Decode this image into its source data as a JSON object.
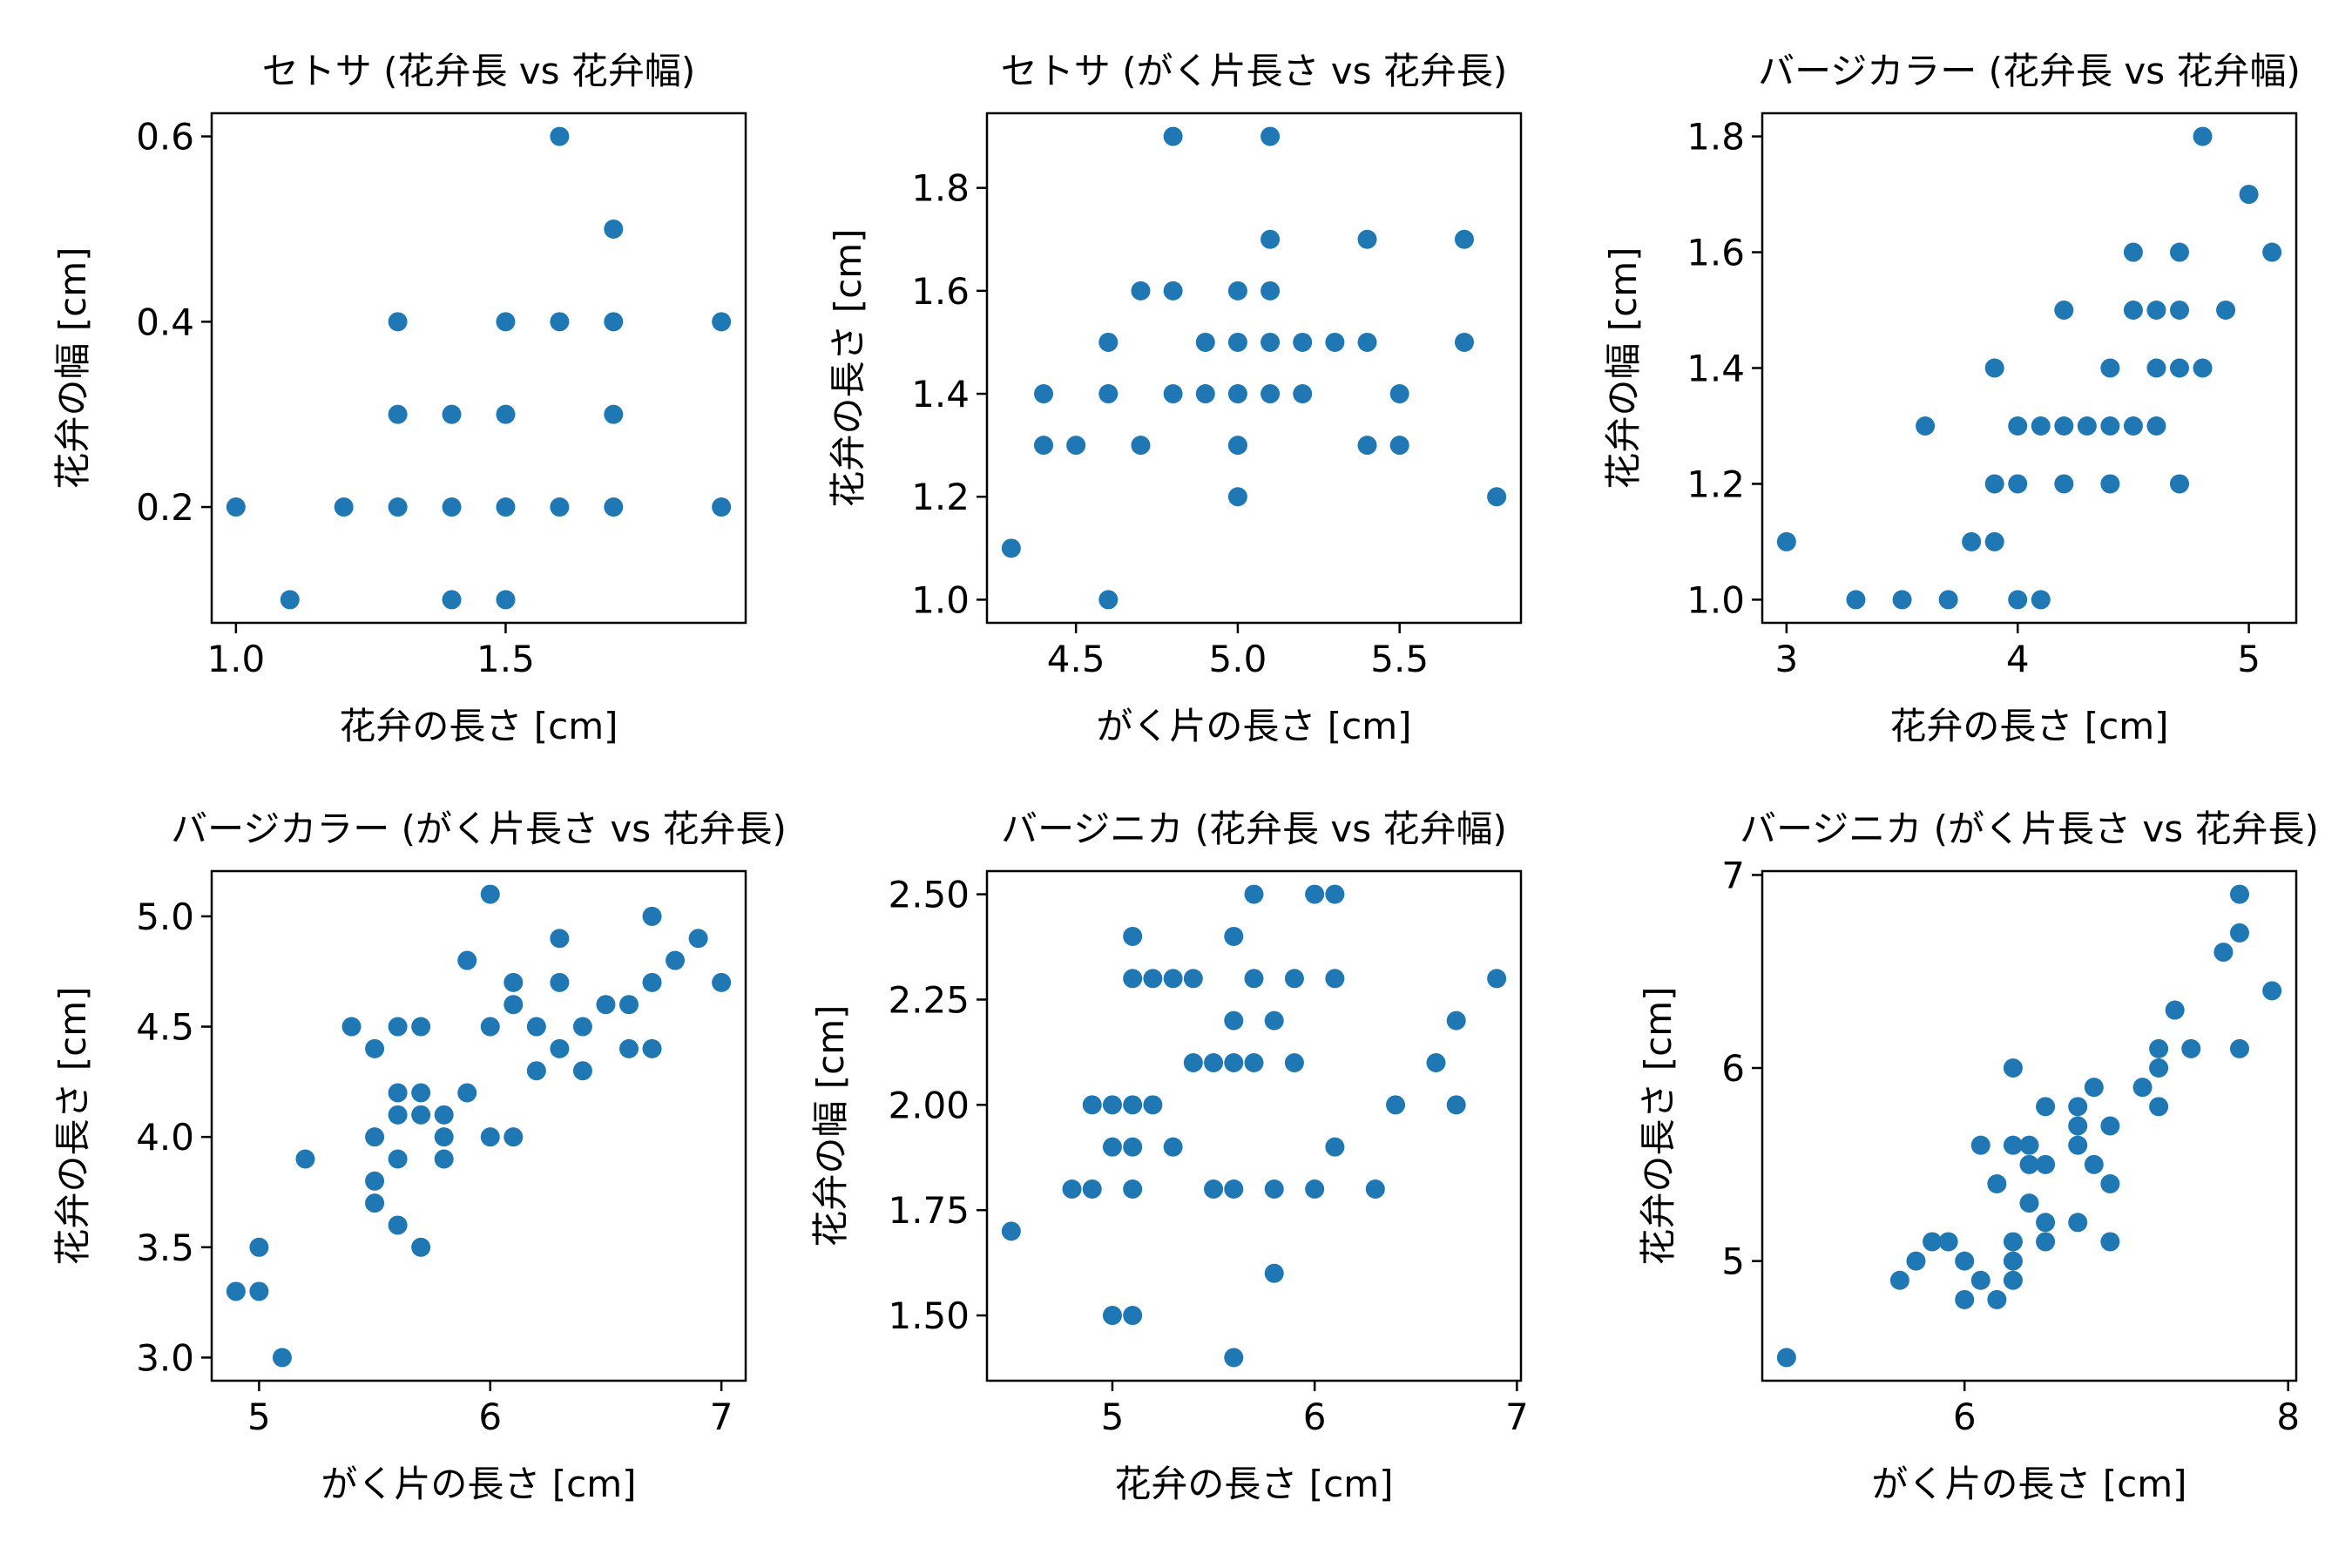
{
  "chart_data": [
    {
      "type": "scatter",
      "title": "セトサ (花弁長 vs 花弁幅)",
      "xlabel": "花弁の長さ [cm]",
      "ylabel": "花弁の幅 [cm]",
      "xlim": [
        0.955,
        1.945
      ],
      "ylim": [
        0.075,
        0.625
      ],
      "xticks": [
        {
          "v": 1.0,
          "label": "1.0"
        },
        {
          "v": 1.5,
          "label": "1.5"
        }
      ],
      "yticks": [
        {
          "v": 0.2,
          "label": "0.2"
        },
        {
          "v": 0.4,
          "label": "0.4"
        },
        {
          "v": 0.6,
          "label": "0.6"
        }
      ],
      "color": "#1f77b4",
      "points": [
        [
          1.0,
          0.2
        ],
        [
          1.1,
          0.1
        ],
        [
          1.2,
          0.2
        ],
        [
          1.3,
          0.2
        ],
        [
          1.3,
          0.3
        ],
        [
          1.3,
          0.4
        ],
        [
          1.4,
          0.1
        ],
        [
          1.4,
          0.2
        ],
        [
          1.4,
          0.3
        ],
        [
          1.5,
          0.1
        ],
        [
          1.5,
          0.2
        ],
        [
          1.5,
          0.3
        ],
        [
          1.5,
          0.4
        ],
        [
          1.6,
          0.2
        ],
        [
          1.6,
          0.4
        ],
        [
          1.6,
          0.6
        ],
        [
          1.7,
          0.2
        ],
        [
          1.7,
          0.3
        ],
        [
          1.7,
          0.4
        ],
        [
          1.7,
          0.5
        ],
        [
          1.9,
          0.2
        ],
        [
          1.9,
          0.4
        ]
      ]
    },
    {
      "type": "scatter",
      "title": "セトサ (がく片長さ vs 花弁長)",
      "xlabel": "がく片の長さ [cm]",
      "ylabel": "花弁の長さ [cm]",
      "xlim": [
        4.225,
        5.875
      ],
      "ylim": [
        0.955,
        1.945
      ],
      "xticks": [
        {
          "v": 4.5,
          "label": "4.5"
        },
        {
          "v": 5.0,
          "label": "5.0"
        },
        {
          "v": 5.5,
          "label": "5.5"
        }
      ],
      "yticks": [
        {
          "v": 1.0,
          "label": "1.0"
        },
        {
          "v": 1.2,
          "label": "1.2"
        },
        {
          "v": 1.4,
          "label": "1.4"
        },
        {
          "v": 1.6,
          "label": "1.6"
        },
        {
          "v": 1.8,
          "label": "1.8"
        }
      ],
      "color": "#1f77b4",
      "points": [
        [
          4.3,
          1.1
        ],
        [
          4.4,
          1.3
        ],
        [
          4.4,
          1.4
        ],
        [
          4.5,
          1.3
        ],
        [
          4.6,
          1.0
        ],
        [
          4.6,
          1.4
        ],
        [
          4.6,
          1.5
        ],
        [
          4.7,
          1.3
        ],
        [
          4.7,
          1.6
        ],
        [
          4.8,
          1.4
        ],
        [
          4.8,
          1.6
        ],
        [
          4.8,
          1.9
        ],
        [
          4.9,
          1.4
        ],
        [
          4.9,
          1.5
        ],
        [
          5.0,
          1.2
        ],
        [
          5.0,
          1.3
        ],
        [
          5.0,
          1.4
        ],
        [
          5.0,
          1.5
        ],
        [
          5.0,
          1.6
        ],
        [
          5.1,
          1.4
        ],
        [
          5.1,
          1.5
        ],
        [
          5.1,
          1.6
        ],
        [
          5.1,
          1.7
        ],
        [
          5.1,
          1.9
        ],
        [
          5.2,
          1.4
        ],
        [
          5.2,
          1.5
        ],
        [
          5.3,
          1.5
        ],
        [
          5.4,
          1.3
        ],
        [
          5.4,
          1.5
        ],
        [
          5.4,
          1.7
        ],
        [
          5.5,
          1.3
        ],
        [
          5.5,
          1.4
        ],
        [
          5.7,
          1.5
        ],
        [
          5.7,
          1.7
        ],
        [
          5.8,
          1.2
        ]
      ]
    },
    {
      "type": "scatter",
      "title": "バージカラー (花弁長 vs 花弁幅)",
      "xlabel": "花弁の長さ [cm]",
      "ylabel": "花弁の幅 [cm]",
      "xlim": [
        2.895,
        5.205
      ],
      "ylim": [
        0.96,
        1.84
      ],
      "xticks": [
        {
          "v": 3,
          "label": "3"
        },
        {
          "v": 4,
          "label": "4"
        },
        {
          "v": 5,
          "label": "5"
        }
      ],
      "yticks": [
        {
          "v": 1.0,
          "label": "1.0"
        },
        {
          "v": 1.2,
          "label": "1.2"
        },
        {
          "v": 1.4,
          "label": "1.4"
        },
        {
          "v": 1.6,
          "label": "1.6"
        },
        {
          "v": 1.8,
          "label": "1.8"
        }
      ],
      "color": "#1f77b4",
      "points": [
        [
          3.0,
          1.1
        ],
        [
          3.3,
          1.0
        ],
        [
          3.5,
          1.0
        ],
        [
          3.6,
          1.3
        ],
        [
          3.7,
          1.0
        ],
        [
          3.8,
          1.1
        ],
        [
          3.9,
          1.1
        ],
        [
          3.9,
          1.2
        ],
        [
          3.9,
          1.4
        ],
        [
          4.0,
          1.0
        ],
        [
          4.0,
          1.2
        ],
        [
          4.0,
          1.3
        ],
        [
          4.1,
          1.0
        ],
        [
          4.1,
          1.3
        ],
        [
          4.2,
          1.2
        ],
        [
          4.2,
          1.3
        ],
        [
          4.2,
          1.5
        ],
        [
          4.3,
          1.3
        ],
        [
          4.4,
          1.2
        ],
        [
          4.4,
          1.3
        ],
        [
          4.4,
          1.4
        ],
        [
          4.5,
          1.3
        ],
        [
          4.5,
          1.5
        ],
        [
          4.5,
          1.6
        ],
        [
          4.6,
          1.3
        ],
        [
          4.6,
          1.4
        ],
        [
          4.6,
          1.5
        ],
        [
          4.7,
          1.2
        ],
        [
          4.7,
          1.4
        ],
        [
          4.7,
          1.5
        ],
        [
          4.7,
          1.6
        ],
        [
          4.8,
          1.4
        ],
        [
          4.8,
          1.8
        ],
        [
          4.9,
          1.5
        ],
        [
          5.0,
          1.7
        ],
        [
          5.1,
          1.6
        ]
      ]
    },
    {
      "type": "scatter",
      "title": "バージカラー (がく片長さ vs 花弁長)",
      "xlabel": "がく片の長さ [cm]",
      "ylabel": "花弁の長さ [cm]",
      "xlim": [
        4.795,
        7.105
      ],
      "ylim": [
        2.895,
        5.205
      ],
      "xticks": [
        {
          "v": 5,
          "label": "5"
        },
        {
          "v": 6,
          "label": "6"
        },
        {
          "v": 7,
          "label": "7"
        }
      ],
      "yticks": [
        {
          "v": 3.0,
          "label": "3.0"
        },
        {
          "v": 3.5,
          "label": "3.5"
        },
        {
          "v": 4.0,
          "label": "4.0"
        },
        {
          "v": 4.5,
          "label": "4.5"
        },
        {
          "v": 5.0,
          "label": "5.0"
        }
      ],
      "color": "#1f77b4",
      "points": [
        [
          4.9,
          3.3
        ],
        [
          5.0,
          3.3
        ],
        [
          5.0,
          3.5
        ],
        [
          5.1,
          3.0
        ],
        [
          5.2,
          3.9
        ],
        [
          5.4,
          4.5
        ],
        [
          5.5,
          3.7
        ],
        [
          5.5,
          3.8
        ],
        [
          5.5,
          4.0
        ],
        [
          5.5,
          4.4
        ],
        [
          5.6,
          3.6
        ],
        [
          5.6,
          3.9
        ],
        [
          5.6,
          4.1
        ],
        [
          5.6,
          4.2
        ],
        [
          5.6,
          4.5
        ],
        [
          5.7,
          3.5
        ],
        [
          5.7,
          4.1
        ],
        [
          5.7,
          4.2
        ],
        [
          5.7,
          4.5
        ],
        [
          5.8,
          3.9
        ],
        [
          5.8,
          4.0
        ],
        [
          5.8,
          4.1
        ],
        [
          5.9,
          4.2
        ],
        [
          5.9,
          4.8
        ],
        [
          6.0,
          4.0
        ],
        [
          6.0,
          4.5
        ],
        [
          6.0,
          5.1
        ],
        [
          6.1,
          4.0
        ],
        [
          6.1,
          4.6
        ],
        [
          6.1,
          4.7
        ],
        [
          6.2,
          4.3
        ],
        [
          6.2,
          4.5
        ],
        [
          6.3,
          4.4
        ],
        [
          6.3,
          4.7
        ],
        [
          6.3,
          4.9
        ],
        [
          6.4,
          4.3
        ],
        [
          6.4,
          4.5
        ],
        [
          6.5,
          4.6
        ],
        [
          6.6,
          4.4
        ],
        [
          6.6,
          4.6
        ],
        [
          6.7,
          4.4
        ],
        [
          6.7,
          4.7
        ],
        [
          6.7,
          5.0
        ],
        [
          6.8,
          4.8
        ],
        [
          6.9,
          4.9
        ],
        [
          7.0,
          4.7
        ]
      ]
    },
    {
      "type": "scatter",
      "title": "バージニカ (花弁長 vs 花弁幅)",
      "xlabel": "花弁の長さ [cm]",
      "ylabel": "花弁の幅 [cm]",
      "xlim": [
        4.38,
        7.02
      ],
      "ylim": [
        1.345,
        2.555
      ],
      "xticks": [
        {
          "v": 5,
          "label": "5"
        },
        {
          "v": 6,
          "label": "6"
        },
        {
          "v": 7,
          "label": "7"
        }
      ],
      "yticks": [
        {
          "v": 1.5,
          "label": "1.50"
        },
        {
          "v": 1.75,
          "label": "1.75"
        },
        {
          "v": 2.0,
          "label": "2.00"
        },
        {
          "v": 2.25,
          "label": "2.25"
        },
        {
          "v": 2.5,
          "label": "2.50"
        }
      ],
      "color": "#1f77b4",
      "points": [
        [
          4.5,
          1.7
        ],
        [
          4.8,
          1.8
        ],
        [
          4.9,
          1.8
        ],
        [
          4.9,
          2.0
        ],
        [
          5.0,
          1.5
        ],
        [
          5.0,
          1.9
        ],
        [
          5.0,
          2.0
        ],
        [
          5.1,
          1.5
        ],
        [
          5.1,
          1.8
        ],
        [
          5.1,
          1.9
        ],
        [
          5.1,
          2.0
        ],
        [
          5.1,
          2.3
        ],
        [
          5.1,
          2.4
        ],
        [
          5.2,
          2.0
        ],
        [
          5.2,
          2.3
        ],
        [
          5.3,
          1.9
        ],
        [
          5.3,
          2.3
        ],
        [
          5.4,
          2.1
        ],
        [
          5.4,
          2.3
        ],
        [
          5.5,
          1.8
        ],
        [
          5.5,
          2.1
        ],
        [
          5.6,
          1.4
        ],
        [
          5.6,
          1.8
        ],
        [
          5.6,
          2.1
        ],
        [
          5.6,
          2.2
        ],
        [
          5.6,
          2.4
        ],
        [
          5.7,
          2.1
        ],
        [
          5.7,
          2.3
        ],
        [
          5.7,
          2.5
        ],
        [
          5.8,
          1.6
        ],
        [
          5.8,
          1.8
        ],
        [
          5.8,
          2.2
        ],
        [
          5.9,
          2.1
        ],
        [
          5.9,
          2.3
        ],
        [
          6.0,
          1.8
        ],
        [
          6.0,
          2.5
        ],
        [
          6.1,
          1.9
        ],
        [
          6.1,
          2.3
        ],
        [
          6.1,
          2.5
        ],
        [
          6.3,
          1.8
        ],
        [
          6.4,
          2.0
        ],
        [
          6.6,
          2.1
        ],
        [
          6.7,
          2.0
        ],
        [
          6.7,
          2.2
        ],
        [
          6.9,
          2.3
        ]
      ]
    },
    {
      "type": "scatter",
      "title": "バージニカ (がく片長さ vs 花弁長)",
      "xlabel": "がく片の長さ [cm]",
      "ylabel": "花弁の長さ [cm]",
      "xlim": [
        4.75,
        8.05
      ],
      "ylim": [
        4.38,
        7.02
      ],
      "xticks": [
        {
          "v": 6,
          "label": "6"
        },
        {
          "v": 8,
          "label": "8"
        }
      ],
      "yticks": [
        {
          "v": 5,
          "label": "5"
        },
        {
          "v": 6,
          "label": "6"
        },
        {
          "v": 7,
          "label": "7"
        }
      ],
      "color": "#1f77b4",
      "points": [
        [
          4.9,
          4.5
        ],
        [
          5.6,
          4.9
        ],
        [
          5.7,
          5.0
        ],
        [
          5.8,
          5.1
        ],
        [
          5.9,
          5.1
        ],
        [
          6.0,
          4.8
        ],
        [
          6.0,
          5.0
        ],
        [
          6.1,
          4.9
        ],
        [
          6.1,
          5.6
        ],
        [
          6.2,
          4.8
        ],
        [
          6.2,
          5.4
        ],
        [
          6.3,
          4.9
        ],
        [
          6.3,
          5.0
        ],
        [
          6.3,
          5.1
        ],
        [
          6.3,
          5.6
        ],
        [
          6.3,
          6.0
        ],
        [
          6.4,
          5.3
        ],
        [
          6.4,
          5.5
        ],
        [
          6.4,
          5.6
        ],
        [
          6.5,
          5.1
        ],
        [
          6.5,
          5.2
        ],
        [
          6.5,
          5.5
        ],
        [
          6.5,
          5.8
        ],
        [
          6.7,
          5.2
        ],
        [
          6.7,
          5.6
        ],
        [
          6.7,
          5.7
        ],
        [
          6.7,
          5.8
        ],
        [
          6.8,
          5.5
        ],
        [
          6.8,
          5.9
        ],
        [
          6.9,
          5.1
        ],
        [
          6.9,
          5.4
        ],
        [
          6.9,
          5.7
        ],
        [
          7.1,
          5.9
        ],
        [
          7.2,
          5.8
        ],
        [
          7.2,
          6.0
        ],
        [
          7.2,
          6.1
        ],
        [
          7.3,
          6.3
        ],
        [
          7.4,
          6.1
        ],
        [
          7.6,
          6.6
        ],
        [
          7.7,
          6.1
        ],
        [
          7.7,
          6.7
        ],
        [
          7.7,
          6.9
        ],
        [
          7.9,
          6.4
        ]
      ]
    }
  ]
}
